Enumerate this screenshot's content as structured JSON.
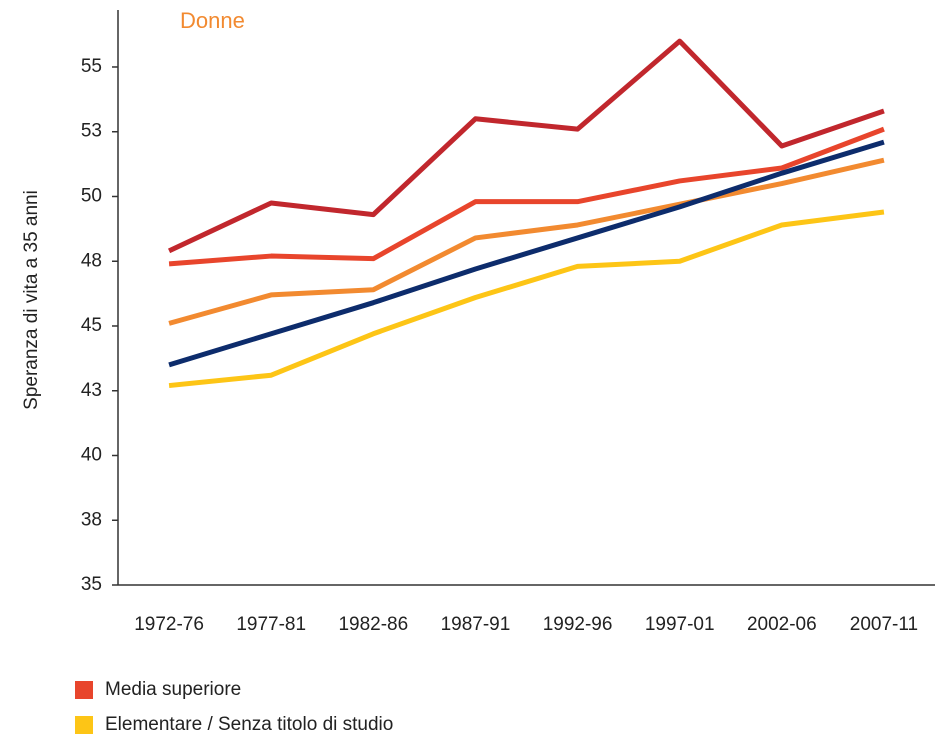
{
  "chart_data": {
    "type": "line",
    "title": "Donne",
    "y_label": "Speranza di vita a 35 anni",
    "categories": [
      "1972-76",
      "1977-81",
      "1982-86",
      "1987-91",
      "1992-96",
      "1997-01",
      "2002-06",
      "2007-11"
    ],
    "series": [
      {
        "color": "#c1272d",
        "values": [
          47.9,
          49.75,
          49.3,
          53.0,
          52.6,
          56.0,
          51.95,
          53.3
        ]
      },
      {
        "name": "Media superiore",
        "color": "#e8452c",
        "values": [
          47.4,
          47.7,
          47.6,
          49.8,
          49.8,
          50.6,
          51.1,
          52.6
        ]
      },
      {
        "color": "#f28a30",
        "values": [
          45.1,
          46.2,
          46.4,
          48.4,
          48.9,
          49.7,
          50.5,
          51.4
        ]
      },
      {
        "name": "Elementare / Senza titolo di studio",
        "color": "#fdc516",
        "values": [
          42.7,
          43.1,
          44.7,
          46.1,
          47.3,
          47.5,
          48.9,
          49.4
        ]
      },
      {
        "color": "#0d2c6c",
        "values": [
          43.5,
          44.7,
          45.9,
          47.2,
          48.4,
          49.6,
          50.9,
          52.1
        ]
      }
    ],
    "ylim": [
      35,
      57.2
    ],
    "yticks": [
      35,
      {
        "value": 37.5,
        "label": "38"
      },
      40,
      {
        "value": 42.5,
        "label": "43"
      },
      45,
      {
        "value": 47.5,
        "label": "48"
      },
      50,
      {
        "value": 52.5,
        "label": "53"
      },
      55
    ],
    "grid": false,
    "legend": "bottom"
  }
}
